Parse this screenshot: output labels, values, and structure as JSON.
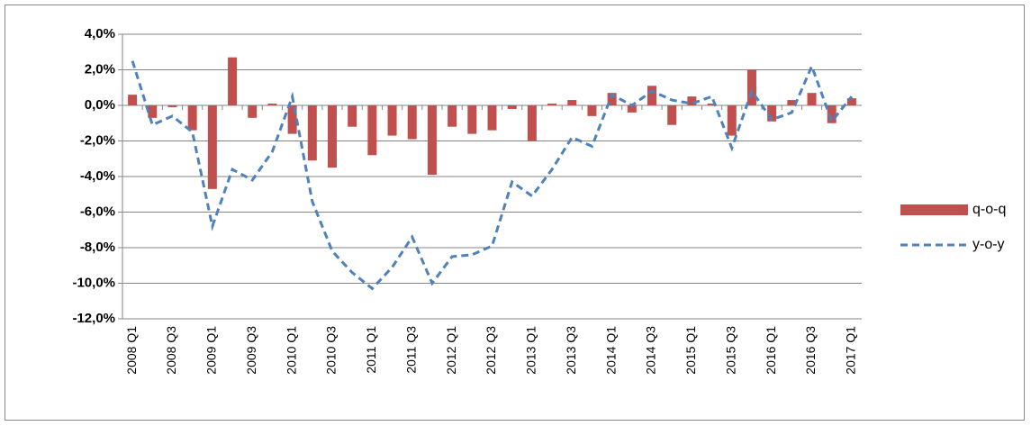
{
  "chart_data": {
    "type": "combo",
    "categories": [
      "2008 Q1",
      null,
      "2008 Q3",
      null,
      "2009 Q1",
      null,
      "2009 Q3",
      null,
      "2010 Q1",
      null,
      "2010 Q3",
      null,
      "2011 Q1",
      null,
      "2011 Q3",
      null,
      "2012 Q1",
      null,
      "2012 Q3",
      null,
      "2013 Q1",
      null,
      "2013 Q3",
      null,
      "2014 Q1",
      null,
      "2014 Q3",
      null,
      "2015 Q1",
      null,
      "2015 Q3",
      null,
      "2016 Q1",
      null,
      "2016 Q3",
      null,
      "2017 Q1"
    ],
    "series": [
      {
        "name": "q-o-q",
        "type": "bar",
        "color": "#c0504d",
        "values": [
          0.6,
          -0.7,
          -0.1,
          -1.4,
          -4.7,
          2.7,
          -0.7,
          0.1,
          -1.6,
          -3.1,
          -3.5,
          -1.2,
          -2.8,
          -1.7,
          -1.9,
          -3.9,
          -1.2,
          -1.6,
          -1.4,
          -0.2,
          -2.0,
          0.1,
          0.3,
          -0.6,
          0.7,
          -0.4,
          1.1,
          -1.1,
          0.5,
          0.1,
          -1.7,
          2.0,
          -0.9,
          0.3,
          0.7,
          -1.0,
          0.4
        ]
      },
      {
        "name": "y-o-y",
        "type": "line",
        "color": "#4f81bd",
        "line_style": "dashed",
        "values": [
          2.5,
          -1.1,
          -0.6,
          -1.5,
          -6.8,
          -3.6,
          -4.2,
          -2.6,
          0.5,
          -5.4,
          -8.2,
          -9.4,
          -10.3,
          -9.1,
          -7.4,
          -10.0,
          -8.5,
          -8.4,
          -7.9,
          -4.3,
          -5.1,
          -3.6,
          -1.8,
          -2.3,
          0.6,
          0.0,
          0.8,
          0.3,
          0.1,
          0.5,
          -2.4,
          0.8,
          -0.8,
          -0.4,
          2.2,
          -0.9,
          0.5
        ]
      }
    ],
    "ylim": [
      -12,
      4
    ],
    "yticks": [
      {
        "value": -12,
        "label": "-12,0%"
      },
      {
        "value": -10,
        "label": "-10,0%"
      },
      {
        "value": -8,
        "label": "-8,0%"
      },
      {
        "value": -6,
        "label": "-6,0%"
      },
      {
        "value": -4,
        "label": "-4,0%"
      },
      {
        "value": -2,
        "label": "-2,0%"
      },
      {
        "value": 0,
        "label": "0,0%"
      },
      {
        "value": 2,
        "label": "2,0%"
      },
      {
        "value": 4,
        "label": "4,0%"
      }
    ],
    "grid": true,
    "legend": "right"
  }
}
